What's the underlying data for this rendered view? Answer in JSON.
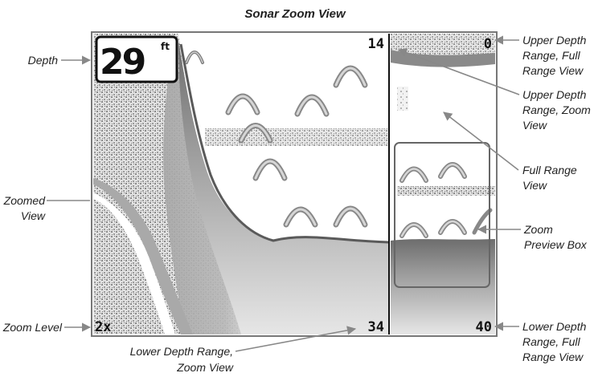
{
  "title": "Sonar Zoom View",
  "depth": {
    "value": "29",
    "unit": "ft"
  },
  "zoom_view": {
    "upper_depth": "14",
    "lower_depth": "34",
    "zoom_level": "2x"
  },
  "full_view": {
    "upper_depth": "0",
    "lower_depth": "40"
  },
  "callouts": {
    "depth": "Depth",
    "zoomed_view": [
      "Zoomed",
      "View"
    ],
    "zoom_level": "Zoom Level",
    "lower_depth_zoom": [
      "Lower Depth Range,",
      "Zoom View"
    ],
    "upper_depth_full": [
      "Upper Depth",
      "Range, Full",
      "Range View"
    ],
    "upper_depth_zoom": [
      "Upper Depth",
      "Range, Zoom",
      "View"
    ],
    "full_range_view": [
      "Full Range",
      "View"
    ],
    "zoom_preview_box": [
      "Zoom",
      "Preview Box"
    ],
    "lower_depth_full": [
      "Lower Depth",
      "Range, Full",
      "Range View"
    ]
  },
  "colors": {
    "frame": "#777777",
    "sonar_dark": "#6f6f6f",
    "sonar_mid": "#a8a8a8",
    "sonar_light": "#d2d2d2",
    "arrow": "#888888"
  }
}
